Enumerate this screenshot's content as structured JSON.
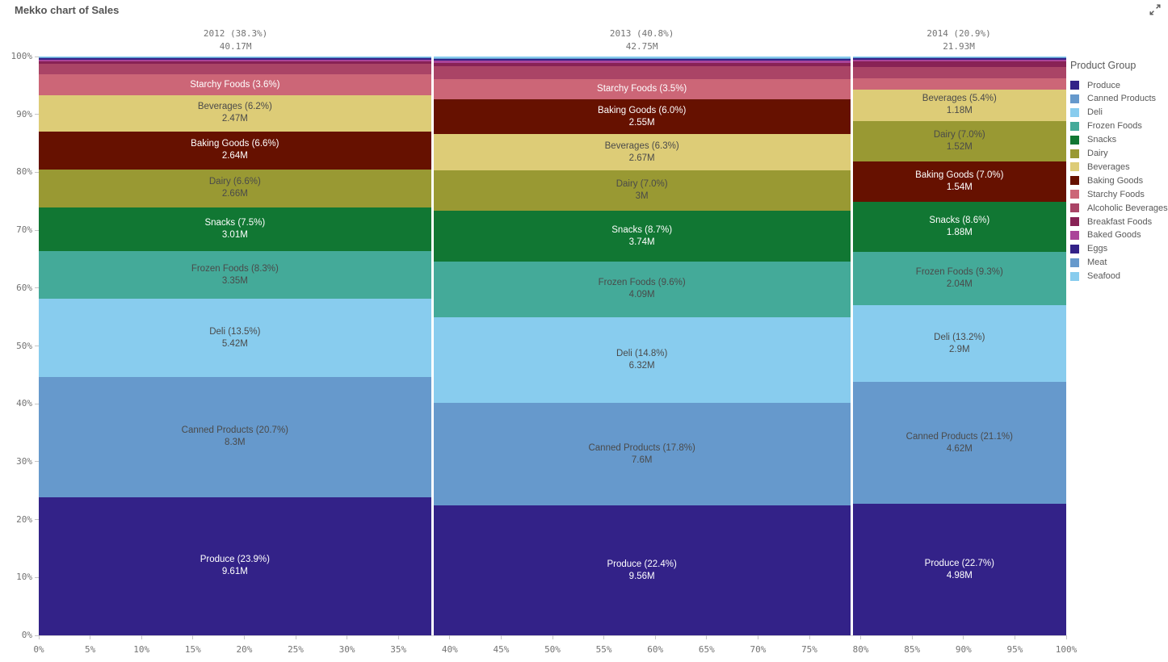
{
  "chart_data": {
    "type": "mekko",
    "title": "Mekko chart of Sales",
    "x_axis": {
      "ticks": [
        "0%",
        "5%",
        "10%",
        "15%",
        "20%",
        "25%",
        "30%",
        "35%",
        "40%",
        "45%",
        "50%",
        "55%",
        "60%",
        "65%",
        "70%",
        "75%",
        "80%",
        "85%",
        "90%",
        "95%",
        "100%"
      ]
    },
    "y_axis": {
      "ticks": [
        "0%",
        "10%",
        "20%",
        "30%",
        "40%",
        "50%",
        "60%",
        "70%",
        "80%",
        "90%",
        "100%"
      ]
    },
    "legend": {
      "title": "Product Group",
      "items": [
        {
          "label": "Produce",
          "color": "#332288"
        },
        {
          "label": "Canned Products",
          "color": "#6699cc"
        },
        {
          "label": "Deli",
          "color": "#88ccee"
        },
        {
          "label": "Frozen Foods",
          "color": "#44aa99"
        },
        {
          "label": "Snacks",
          "color": "#117733"
        },
        {
          "label": "Dairy",
          "color": "#999933"
        },
        {
          "label": "Beverages",
          "color": "#ddcc77"
        },
        {
          "label": "Baking Goods",
          "color": "#661100"
        },
        {
          "label": "Starchy Foods",
          "color": "#cc6677"
        },
        {
          "label": "Alcoholic Beverages",
          "color": "#aa4466"
        },
        {
          "label": "Breakfast Foods",
          "color": "#882255"
        },
        {
          "label": "Baked Goods",
          "color": "#aa4499"
        },
        {
          "label": "Eggs",
          "color": "#332288"
        },
        {
          "label": "Meat",
          "color": "#6699cc"
        },
        {
          "label": "Seafood",
          "color": "#88ccee"
        }
      ]
    },
    "columns": [
      {
        "year": "2012",
        "header_line1": "2012 (38.3%)",
        "header_line2": "40.17M",
        "width_pct": 38.3,
        "segments": [
          {
            "group": "Produce",
            "pct": 23.9,
            "label": "Produce (23.9%)",
            "value": "9.61M"
          },
          {
            "group": "Canned Products",
            "pct": 20.7,
            "label": "Canned Products (20.7%)",
            "value": "8.3M"
          },
          {
            "group": "Deli",
            "pct": 13.5,
            "label": "Deli (13.5%)",
            "value": "5.42M"
          },
          {
            "group": "Frozen Foods",
            "pct": 8.3,
            "label": "Frozen Foods (8.3%)",
            "value": "3.35M"
          },
          {
            "group": "Snacks",
            "pct": 7.5,
            "label": "Snacks (7.5%)",
            "value": "3.01M"
          },
          {
            "group": "Dairy",
            "pct": 6.6,
            "label": "Dairy (6.6%)",
            "value": "2.66M"
          },
          {
            "group": "Baking Goods",
            "pct": 6.6,
            "label": "Baking Goods (6.6%)",
            "value": "2.64M"
          },
          {
            "group": "Beverages",
            "pct": 6.2,
            "label": "Beverages (6.2%)",
            "value": "2.47M"
          },
          {
            "group": "Starchy Foods",
            "pct": 3.6,
            "label": "Starchy Foods (3.6%)",
            "value": null
          },
          {
            "group": "Alcoholic Beverages",
            "pct": 1.9,
            "label": null,
            "value": null
          },
          {
            "group": "Breakfast Foods",
            "pct": 0.4,
            "label": null,
            "value": null
          },
          {
            "group": "Baked Goods",
            "pct": 0.3,
            "label": null,
            "value": null
          },
          {
            "group": "Eggs",
            "pct": 0.2,
            "label": null,
            "value": null
          },
          {
            "group": "Meat",
            "pct": 0.2,
            "label": null,
            "value": null
          },
          {
            "group": "Seafood",
            "pct": 0.1,
            "label": null,
            "value": null
          }
        ]
      },
      {
        "year": "2013",
        "header_line1": "2013 (40.8%)",
        "header_line2": "42.75M",
        "width_pct": 40.8,
        "segments": [
          {
            "group": "Produce",
            "pct": 22.4,
            "label": "Produce (22.4%)",
            "value": "9.56M"
          },
          {
            "group": "Canned Products",
            "pct": 17.8,
            "label": "Canned Products (17.8%)",
            "value": "7.6M"
          },
          {
            "group": "Deli",
            "pct": 14.8,
            "label": "Deli (14.8%)",
            "value": "6.32M"
          },
          {
            "group": "Frozen Foods",
            "pct": 9.6,
            "label": "Frozen Foods (9.6%)",
            "value": "4.09M"
          },
          {
            "group": "Snacks",
            "pct": 8.7,
            "label": "Snacks (8.7%)",
            "value": "3.74M"
          },
          {
            "group": "Dairy",
            "pct": 7.0,
            "label": "Dairy (7.0%)",
            "value": "3M"
          },
          {
            "group": "Beverages",
            "pct": 6.3,
            "label": "Beverages (6.3%)",
            "value": "2.67M"
          },
          {
            "group": "Baking Goods",
            "pct": 6.0,
            "label": "Baking Goods (6.0%)",
            "value": "2.55M"
          },
          {
            "group": "Starchy Foods",
            "pct": 3.5,
            "label": "Starchy Foods (3.5%)",
            "value": null
          },
          {
            "group": "Alcoholic Beverages",
            "pct": 2.25,
            "label": null,
            "value": null
          },
          {
            "group": "Breakfast Foods",
            "pct": 0.55,
            "label": null,
            "value": null
          },
          {
            "group": "Baked Goods",
            "pct": 0.4,
            "label": null,
            "value": null
          },
          {
            "group": "Eggs",
            "pct": 0.25,
            "label": null,
            "value": null
          },
          {
            "group": "Meat",
            "pct": 0.2,
            "label": null,
            "value": null
          },
          {
            "group": "Seafood",
            "pct": 0.25,
            "label": null,
            "value": null
          }
        ]
      },
      {
        "year": "2014",
        "header_line1": "2014 (20.9%)",
        "header_line2": "21.93M",
        "width_pct": 20.9,
        "segments": [
          {
            "group": "Produce",
            "pct": 22.7,
            "label": "Produce (22.7%)",
            "value": "4.98M"
          },
          {
            "group": "Canned Products",
            "pct": 21.1,
            "label": "Canned Products (21.1%)",
            "value": "4.62M"
          },
          {
            "group": "Deli",
            "pct": 13.2,
            "label": "Deli (13.2%)",
            "value": "2.9M"
          },
          {
            "group": "Frozen Foods",
            "pct": 9.3,
            "label": "Frozen Foods (9.3%)",
            "value": "2.04M"
          },
          {
            "group": "Snacks",
            "pct": 8.6,
            "label": "Snacks (8.6%)",
            "value": "1.88M"
          },
          {
            "group": "Baking Goods",
            "pct": 7.0,
            "label": "Baking Goods (7.0%)",
            "value": "1.54M"
          },
          {
            "group": "Dairy",
            "pct": 7.0,
            "label": "Dairy (7.0%)",
            "value": "1.52M"
          },
          {
            "group": "Beverages",
            "pct": 5.4,
            "label": "Beverages (5.4%)",
            "value": "1.18M"
          },
          {
            "group": "Starchy Foods",
            "pct": 1.9,
            "label": null,
            "value": null
          },
          {
            "group": "Alcoholic Beverages",
            "pct": 2.0,
            "label": null,
            "value": null
          },
          {
            "group": "Breakfast Foods",
            "pct": 0.9,
            "label": null,
            "value": null
          },
          {
            "group": "Baked Goods",
            "pct": 0.35,
            "label": null,
            "value": null
          },
          {
            "group": "Eggs",
            "pct": 0.25,
            "label": null,
            "value": null
          },
          {
            "group": "Meat",
            "pct": 0.2,
            "label": null,
            "value": null
          },
          {
            "group": "Seafood",
            "pct": 0.1,
            "label": null,
            "value": null
          }
        ]
      }
    ]
  }
}
